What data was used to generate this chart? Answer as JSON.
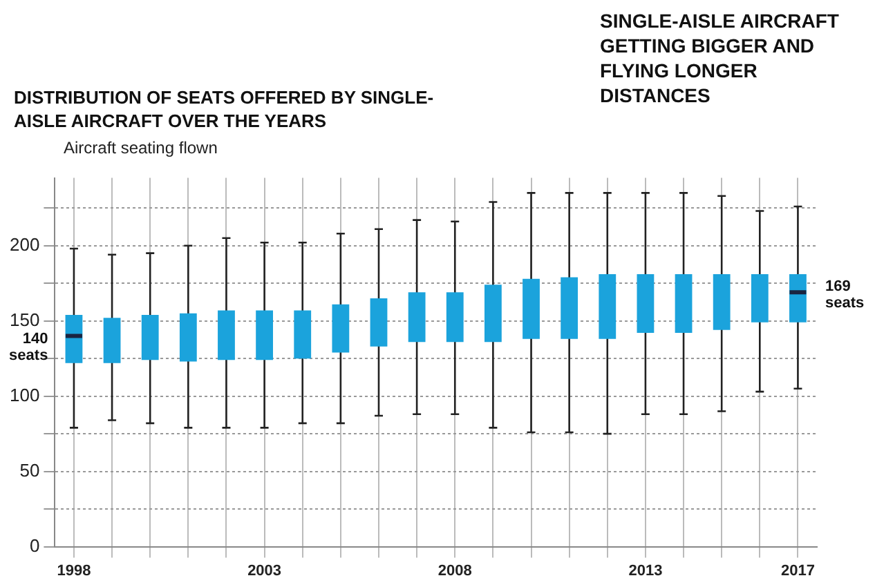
{
  "chart_data": {
    "type": "box",
    "title": "SINGLE-AISLE AIRCRAFT GETTING BIGGER AND FLYING LONGER DISTANCES",
    "subtitle": "DISTRIBUTION OF SEATS OFFERED BY SINGLE-AISLE AIRCRAFT OVER THE YEARS",
    "ylabel": "Aircraft seating flown",
    "categories": [
      "1998",
      null,
      null,
      null,
      null,
      "2003",
      null,
      null,
      null,
      null,
      "2008",
      null,
      null,
      null,
      null,
      "2013",
      null,
      null,
      null,
      "2017"
    ],
    "color": "#1ba3dc",
    "boxes": [
      {
        "low": 79,
        "q1": 122,
        "median": 140,
        "q3": 154,
        "high": 198
      },
      {
        "low": 84,
        "q1": 122,
        "median": null,
        "q3": 152,
        "high": 194
      },
      {
        "low": 82,
        "q1": 124,
        "median": null,
        "q3": 154,
        "high": 195
      },
      {
        "low": 79,
        "q1": 123,
        "median": null,
        "q3": 155,
        "high": 200
      },
      {
        "low": 79,
        "q1": 124,
        "median": null,
        "q3": 157,
        "high": 205
      },
      {
        "low": 79,
        "q1": 124,
        "median": null,
        "q3": 157,
        "high": 202
      },
      {
        "low": 82,
        "q1": 125,
        "median": null,
        "q3": 157,
        "high": 202
      },
      {
        "low": 82,
        "q1": 129,
        "median": null,
        "q3": 161,
        "high": 208
      },
      {
        "low": 87,
        "q1": 133,
        "median": null,
        "q3": 165,
        "high": 211
      },
      {
        "low": 88,
        "q1": 136,
        "median": null,
        "q3": 169,
        "high": 217
      },
      {
        "low": 88,
        "q1": 136,
        "median": null,
        "q3": 169,
        "high": 216
      },
      {
        "low": 79,
        "q1": 136,
        "median": null,
        "q3": 174,
        "high": 229
      },
      {
        "low": 76,
        "q1": 138,
        "median": null,
        "q3": 178,
        "high": 235
      },
      {
        "low": 76,
        "q1": 138,
        "median": null,
        "q3": 179,
        "high": 235
      },
      {
        "low": 75,
        "q1": 138,
        "median": null,
        "q3": 181,
        "high": 235
      },
      {
        "low": 88,
        "q1": 142,
        "median": null,
        "q3": 181,
        "high": 235
      },
      {
        "low": 88,
        "q1": 142,
        "median": null,
        "q3": 181,
        "high": 235
      },
      {
        "low": 90,
        "q1": 144,
        "median": null,
        "q3": 181,
        "high": 233
      },
      {
        "low": 103,
        "q1": 149,
        "median": null,
        "q3": 181,
        "high": 223
      },
      {
        "low": 105,
        "q1": 149,
        "median": 169,
        "q3": 181,
        "high": 226
      }
    ],
    "ylim": [
      0,
      245
    ],
    "yticks": [
      0,
      {
        "value": 25,
        "label": null
      },
      50,
      {
        "value": 75,
        "label": null
      },
      100,
      {
        "value": 125,
        "label": null
      },
      150,
      {
        "value": 175,
        "label": null
      },
      200,
      {
        "value": 225,
        "label": null
      }
    ],
    "grid": true,
    "legend": false,
    "annotations": [
      {
        "text": "140 seats",
        "x": "1998",
        "y": 140
      },
      {
        "text": "169 seats",
        "x": "2017",
        "y": 169
      }
    ]
  }
}
